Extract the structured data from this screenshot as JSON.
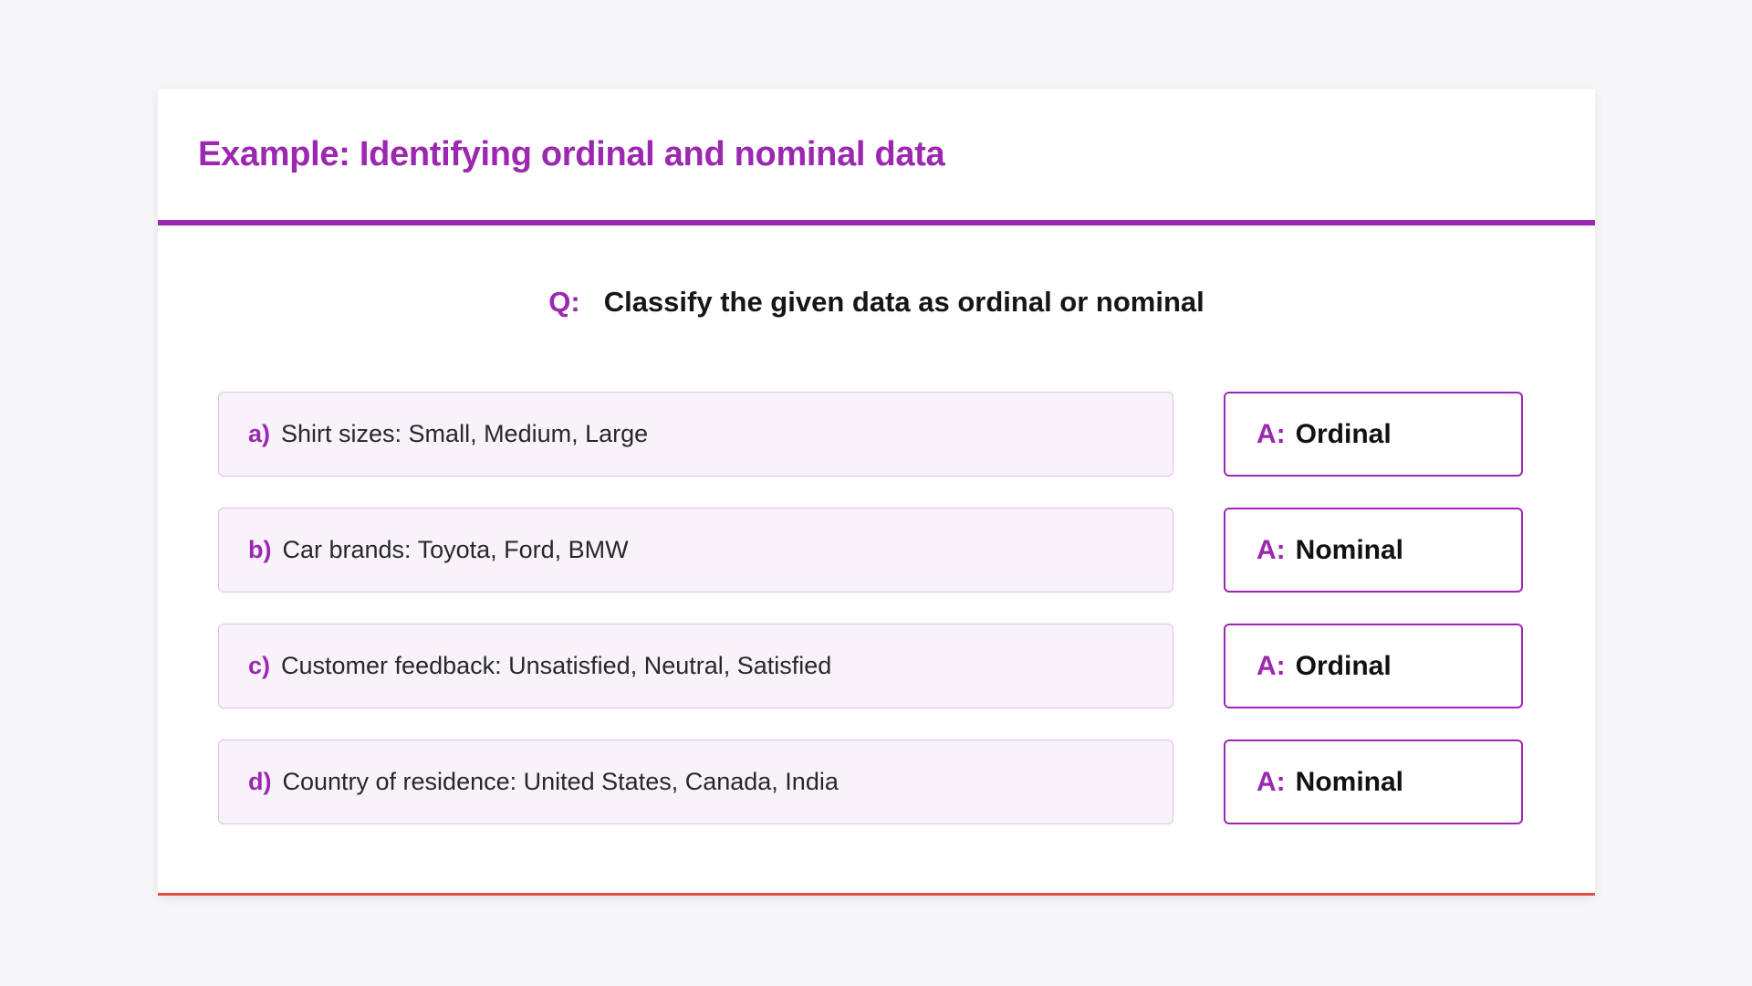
{
  "page": {
    "background_color": "#f6f6f8"
  },
  "card": {
    "title": "Example: Identifying ordinal and nominal data",
    "colors": {
      "accent_purple": "#9c27b0",
      "prompt_box_background": "#f8f2fa",
      "prompt_box_border": "#e3bdec",
      "bottom_line_red": "#dd4e3d",
      "body_text": "#282828"
    }
  },
  "question": {
    "label": "Q:",
    "text": "Classify the given data as ordinal or nominal"
  },
  "items": [
    {
      "label": "a)",
      "text": "Shirt sizes: Small, Medium, Large",
      "answer_label": "A:",
      "answer": "Ordinal"
    },
    {
      "label": "b)",
      "text": "Car brands: Toyota, Ford, BMW",
      "answer_label": "A:",
      "answer": "Nominal"
    },
    {
      "label": "c)",
      "text": "Customer feedback: Unsatisfied, Neutral, Satisfied",
      "answer_label": "A:",
      "answer": "Ordinal"
    },
    {
      "label": "d)",
      "text": "Country of residence: United States, Canada, India",
      "answer_label": "A:",
      "answer": "Nominal"
    }
  ]
}
